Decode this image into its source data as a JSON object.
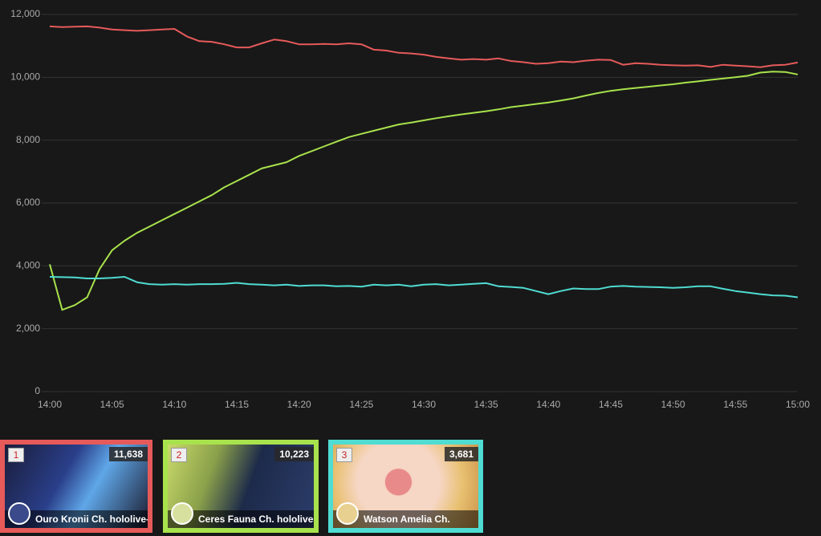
{
  "chart_data": {
    "type": "line",
    "x": [
      0,
      1,
      2,
      3,
      4,
      5,
      6,
      7,
      8,
      9,
      10,
      11,
      12,
      13,
      14,
      15,
      16,
      17,
      18,
      19,
      20,
      21,
      22,
      23,
      24,
      25,
      26,
      27,
      28,
      29,
      30,
      31,
      32,
      33,
      34,
      35,
      36,
      37,
      38,
      39,
      40,
      41,
      42,
      43,
      44,
      45,
      46,
      47,
      48,
      49,
      50,
      51,
      52,
      53,
      54,
      55,
      56,
      57,
      58,
      59,
      60
    ],
    "xlim": [
      0,
      60
    ],
    "xticks": [
      {
        "value": 0,
        "label": "14:00"
      },
      {
        "value": 5,
        "label": "14:05"
      },
      {
        "value": 10,
        "label": "14:10"
      },
      {
        "value": 15,
        "label": "14:15"
      },
      {
        "value": 20,
        "label": "14:20"
      },
      {
        "value": 25,
        "label": "14:25"
      },
      {
        "value": 30,
        "label": "14:30"
      },
      {
        "value": 35,
        "label": "14:35"
      },
      {
        "value": 40,
        "label": "14:40"
      },
      {
        "value": 45,
        "label": "14:45"
      },
      {
        "value": 50,
        "label": "14:50"
      },
      {
        "value": 55,
        "label": "14:55"
      },
      {
        "value": 60,
        "label": "15:00"
      }
    ],
    "ylim": [
      0,
      12000
    ],
    "yticks": [
      0,
      {
        "value": 2000,
        "label": "2,000"
      },
      {
        "value": 4000,
        "label": "4,000"
      },
      {
        "value": 6000,
        "label": "6,000"
      },
      {
        "value": 8000,
        "label": "8,000"
      },
      {
        "value": 10000,
        "label": "10,000"
      },
      {
        "value": 12000,
        "label": "12,000"
      }
    ],
    "grid": true,
    "series": [
      {
        "color": "#e65a5a",
        "values": [
          11620,
          11600,
          11610,
          11620,
          11580,
          11520,
          11500,
          11480,
          11500,
          11520,
          11540,
          11300,
          11150,
          11130,
          11050,
          10950,
          10950,
          11080,
          11200,
          11150,
          11050,
          11050,
          11060,
          11050,
          11080,
          11050,
          10880,
          10850,
          10780,
          10760,
          10720,
          10650,
          10600,
          10560,
          10580,
          10560,
          10600,
          10520,
          10480,
          10430,
          10450,
          10500,
          10480,
          10530,
          10560,
          10550,
          10400,
          10450,
          10430,
          10400,
          10380,
          10370,
          10380,
          10330,
          10400,
          10370,
          10350,
          10320,
          10380,
          10400,
          10470
        ]
      },
      {
        "color": "#a8e24c",
        "values": [
          4050,
          2600,
          2750,
          3000,
          3900,
          4500,
          4800,
          5050,
          5250,
          5450,
          5650,
          5850,
          6050,
          6250,
          6500,
          6700,
          6900,
          7100,
          7200,
          7300,
          7500,
          7650,
          7800,
          7950,
          8100,
          8200,
          8300,
          8400,
          8500,
          8560,
          8630,
          8700,
          8760,
          8820,
          8870,
          8920,
          8980,
          9050,
          9100,
          9150,
          9200,
          9260,
          9330,
          9420,
          9500,
          9570,
          9620,
          9660,
          9700,
          9740,
          9780,
          9830,
          9870,
          9920,
          9960,
          10000,
          10050,
          10150,
          10180,
          10170,
          10090
        ]
      },
      {
        "color": "#4fdcd2",
        "values": [
          3650,
          3640,
          3630,
          3600,
          3600,
          3620,
          3650,
          3480,
          3420,
          3400,
          3420,
          3400,
          3420,
          3420,
          3430,
          3460,
          3420,
          3400,
          3380,
          3400,
          3360,
          3380,
          3380,
          3350,
          3360,
          3340,
          3400,
          3380,
          3400,
          3350,
          3400,
          3420,
          3380,
          3400,
          3430,
          3450,
          3350,
          3330,
          3300,
          3200,
          3100,
          3200,
          3280,
          3260,
          3260,
          3340,
          3360,
          3340,
          3330,
          3320,
          3300,
          3320,
          3350,
          3350,
          3270,
          3200,
          3150,
          3100,
          3060,
          3050,
          3000
        ]
      }
    ]
  },
  "cards": [
    {
      "rank": "1",
      "value": "11,638",
      "name": "Ouro Kronii Ch. hololive-"
    },
    {
      "rank": "2",
      "value": "10,223",
      "name": "Ceres Fauna Ch. hololive-"
    },
    {
      "rank": "3",
      "value": "3,681",
      "name": "Watson Amelia Ch."
    }
  ]
}
